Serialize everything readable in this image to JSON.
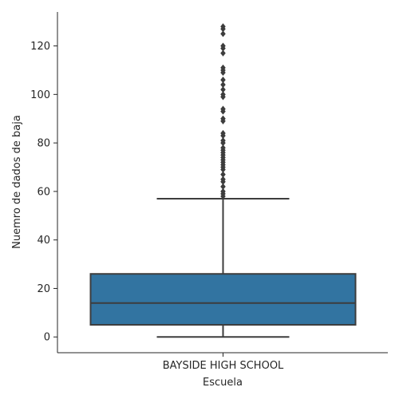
{
  "chart_data": {
    "type": "box",
    "xlabel": "Escuela",
    "ylabel": "Nuemro de dados de baja",
    "categories": [
      "BAYSIDE HIGH SCHOOL"
    ],
    "ylim": [
      -6.5,
      134
    ],
    "yticks": [
      0,
      20,
      40,
      60,
      80,
      100,
      120
    ],
    "box": {
      "whisker_low": 0,
      "q1": 5,
      "median": 14,
      "q3": 26,
      "whisker_high": 57
    },
    "outliers": [
      58,
      59,
      60,
      62,
      64,
      65,
      67,
      69,
      70,
      71,
      72,
      73,
      74,
      75,
      76,
      77,
      78,
      80,
      81,
      83,
      84,
      89,
      90,
      93,
      94,
      99,
      100,
      102,
      104,
      106,
      109,
      110,
      111,
      117,
      119,
      120,
      125,
      127,
      128
    ],
    "colors": {
      "box_fill": "#3274a1",
      "line": "#3d3d3d",
      "axis": "#262626"
    },
    "grid": false,
    "legend": "none"
  }
}
